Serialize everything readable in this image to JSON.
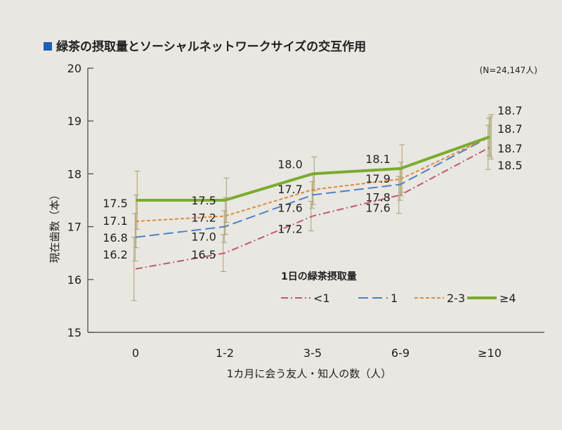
{
  "chart_data": {
    "type": "line",
    "title": "緑茶の摂取量とソーシャルネットワークサイズの交互作用",
    "note": "(N=24,147人)",
    "xlabel": "1カ月に会う友人・知人の数（人）",
    "ylabel": "現在歯数（本）",
    "legend_title": "1日の緑茶摂取量",
    "legend_position": "center-right",
    "categories": [
      "0",
      "1-2",
      "3-5",
      "6-9",
      "≥10"
    ],
    "ylim": [
      15,
      20
    ],
    "yticks": [
      "15",
      "16",
      "17",
      "18",
      "19",
      "20"
    ],
    "grid": false,
    "series": [
      {
        "name": "<1",
        "values": [
          16.2,
          16.5,
          17.2,
          17.6,
          18.5
        ],
        "labels": [
          "16.2",
          "16.5",
          "17.2",
          "17.6",
          "18.5"
        ],
        "color": "#c0567a",
        "dash": "10 4 2 4"
      },
      {
        "name": "1",
        "values": [
          16.8,
          17.0,
          17.6,
          17.8,
          18.7
        ],
        "labels": [
          "16.8",
          "17.0",
          "17.6",
          "17.8",
          "18.7"
        ],
        "color": "#4f7fc9",
        "dash": "14 6"
      },
      {
        "name": "2-3",
        "values": [
          17.1,
          17.2,
          17.7,
          17.9,
          18.7
        ],
        "labels": [
          "17.1",
          "17.2",
          "17.7",
          "17.9",
          "18.7"
        ],
        "color": "#e08a3a",
        "dash": "5 3"
      },
      {
        "name": "≥4",
        "values": [
          17.5,
          17.5,
          18.0,
          18.1,
          18.7
        ],
        "labels": [
          "17.5",
          "17.5",
          "18.0",
          "18.1",
          "18.7"
        ],
        "color": "#7aab2e",
        "dash": ""
      }
    ]
  }
}
